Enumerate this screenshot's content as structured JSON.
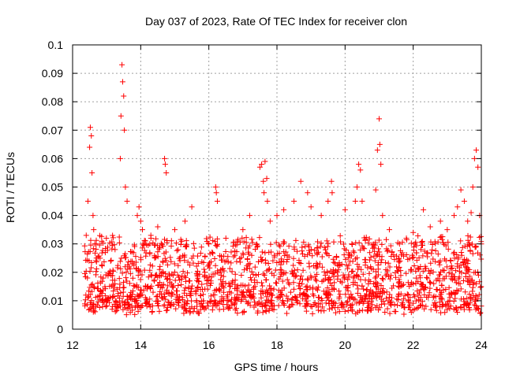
{
  "chart_data": {
    "type": "scatter",
    "title": "Day 037 of 2023, Rate Of TEC Index for receiver clon",
    "xlabel": "GPS time / hours",
    "ylabel": "ROTI / TECUs",
    "xlim": [
      12,
      24
    ],
    "ylim": [
      0,
      0.1
    ],
    "x_ticks": [
      "12",
      "14",
      "16",
      "18",
      "20",
      "22",
      "24"
    ],
    "y_ticks": [
      "0",
      "0.01",
      "0.02",
      "0.03",
      "0.04",
      "0.05",
      "0.06",
      "0.07",
      "0.08",
      "0.09",
      "0.1"
    ],
    "grid": true,
    "legend": "none",
    "marker": "plus",
    "color": "#ff0000",
    "series": [
      {
        "x": [
          12.4,
          12.45,
          12.5,
          12.52,
          12.55,
          12.57,
          12.6,
          12.62,
          12.65,
          12.7,
          13.4,
          13.42,
          13.45,
          13.47,
          13.5,
          13.52,
          13.55,
          13.6,
          13.9,
          13.95,
          14.0,
          14.05,
          14.1,
          14.3,
          14.5,
          14.7,
          14.72,
          14.75,
          15.0,
          15.3,
          15.5,
          16.0,
          16.2,
          16.22,
          16.25,
          16.5,
          17.0,
          17.2,
          17.5,
          17.55,
          17.6,
          17.62,
          17.65,
          17.7,
          17.72,
          17.8,
          18.0,
          18.2,
          18.5,
          18.7,
          18.9,
          19.0,
          19.3,
          19.5,
          19.6,
          19.62,
          20.0,
          20.3,
          20.35,
          20.4,
          20.45,
          20.5,
          20.9,
          20.95,
          21.0,
          21.02,
          21.05,
          21.1,
          21.3,
          21.6,
          21.8,
          22.0,
          22.3,
          22.5,
          22.8,
          23.0,
          23.2,
          23.3,
          23.4,
          23.5,
          23.6,
          23.7,
          23.75,
          23.8,
          23.85,
          23.9,
          23.95,
          24.0
        ],
        "y": [
          0.033,
          0.045,
          0.064,
          0.071,
          0.068,
          0.055,
          0.04,
          0.035,
          0.03,
          0.025,
          0.06,
          0.075,
          0.093,
          0.087,
          0.082,
          0.07,
          0.05,
          0.045,
          0.04,
          0.043,
          0.038,
          0.035,
          0.03,
          0.032,
          0.036,
          0.06,
          0.058,
          0.055,
          0.035,
          0.038,
          0.043,
          0.03,
          0.05,
          0.048,
          0.045,
          0.032,
          0.035,
          0.04,
          0.057,
          0.058,
          0.052,
          0.048,
          0.059,
          0.053,
          0.045,
          0.038,
          0.04,
          0.042,
          0.045,
          0.052,
          0.048,
          0.043,
          0.04,
          0.045,
          0.052,
          0.048,
          0.042,
          0.045,
          0.05,
          0.058,
          0.056,
          0.045,
          0.049,
          0.063,
          0.074,
          0.065,
          0.058,
          0.04,
          0.035,
          0.03,
          0.032,
          0.034,
          0.042,
          0.036,
          0.038,
          0.035,
          0.04,
          0.043,
          0.049,
          0.045,
          0.038,
          0.041,
          0.05,
          0.06,
          0.063,
          0.057,
          0.04,
          0.03
        ],
        "dense_band": {
          "x_range": [
            12.35,
            24.0
          ],
          "y_range": [
            0.005,
            0.03
          ],
          "count": 1800
        }
      }
    ]
  }
}
